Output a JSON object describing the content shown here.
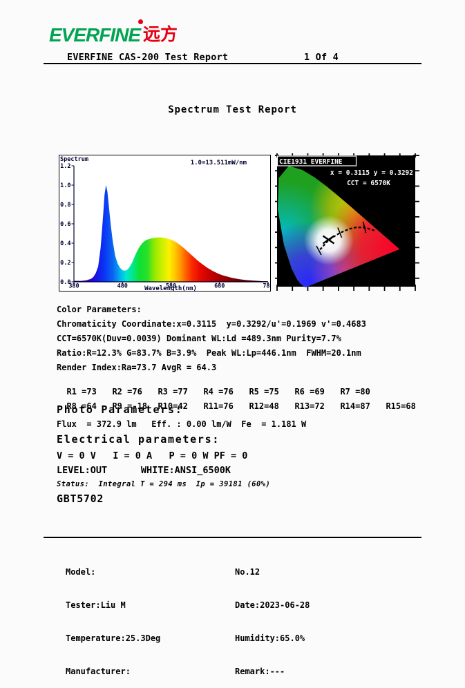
{
  "brand": {
    "name": "EVERFINE",
    "cn": "远方",
    "colors": {
      "green": "#00A451",
      "red": "#E60012"
    }
  },
  "header": {
    "title": "EVERFINE CAS-200 Test Report",
    "page": "1 Of 4"
  },
  "report_title": "Spectrum Test Report",
  "chart_data": [
    {
      "type": "area",
      "title": "Spectrum",
      "scale_note": "1.0=13.511mW/nm",
      "xlabel": "Wavelength(nm)",
      "xlim": [
        380,
        780
      ],
      "ylim": [
        0,
        1.2
      ],
      "x_ticks": [
        380,
        480,
        580,
        680,
        780
      ],
      "y_ticks": [
        "0.0",
        "0.2",
        "0.4",
        "0.6",
        "0.8",
        "1.0",
        "1.2"
      ],
      "x": [
        380,
        395,
        405,
        415,
        420,
        425,
        430,
        435,
        440,
        443,
        446,
        449,
        452,
        456,
        460,
        465,
        470,
        475,
        480,
        485,
        490,
        495,
        500,
        505,
        510,
        515,
        520,
        525,
        530,
        540,
        550,
        558,
        565,
        575,
        585,
        595,
        605,
        615,
        625,
        635,
        645,
        655,
        665,
        675,
        685,
        695,
        705,
        720,
        735,
        750,
        765,
        780
      ],
      "values": [
        0.01,
        0.01,
        0.015,
        0.03,
        0.05,
        0.09,
        0.16,
        0.35,
        0.68,
        0.9,
        1.0,
        0.93,
        0.78,
        0.58,
        0.42,
        0.27,
        0.19,
        0.145,
        0.12,
        0.115,
        0.125,
        0.155,
        0.2,
        0.26,
        0.315,
        0.36,
        0.395,
        0.42,
        0.435,
        0.45,
        0.458,
        0.46,
        0.455,
        0.445,
        0.425,
        0.395,
        0.355,
        0.31,
        0.265,
        0.22,
        0.18,
        0.145,
        0.115,
        0.09,
        0.07,
        0.055,
        0.042,
        0.028,
        0.018,
        0.012,
        0.008,
        0.005
      ],
      "peak_wavelength_nm": 446.1,
      "fwhm_nm": 20.1
    },
    {
      "type": "scatter",
      "title": "CIE1931 EVERFINE",
      "xy_label": "x = 0.3115 y = 0.3292",
      "cct_label": "CCT = 6570K",
      "point": {
        "x": 0.3115,
        "y": 0.3292
      },
      "cct_k": 6570
    }
  ],
  "color_params": {
    "heading": "Color Parameters:",
    "lines": [
      "Chromaticity Coordinate:x=0.3115  y=0.3292/u'=0.1969 v'=0.4683",
      "CCT=6570K(Duv=0.0039) Dominant WL:Ld =489.3nm Purity=7.7%",
      "Ratio:R=12.3% G=83.7% B=3.9%  Peak WL:Lp=446.1nm  FWHM=20.1nm",
      "Render Index:Ra=73.7 AvgR = 64.3"
    ],
    "cri_row1": [
      "R1 =73",
      "R2 =76",
      "R3 =77",
      "R4 =76",
      "R5 =75",
      "R6 =69",
      "R7 =80"
    ],
    "cri_row2": [
      "R8 =64",
      "R9 =-18",
      "R10=42",
      "R11=76",
      "R12=48",
      "R13=72",
      "R14=87",
      "R15=68"
    ]
  },
  "photo_params": {
    "heading": "Photo Parameters:",
    "line": "Flux  = 372.9 lm   Eff. : 0.00 lm/W  Fe  = 1.181 W"
  },
  "electrical_params": {
    "heading": "Electrical parameters:",
    "line1": "V = 0 V   I = 0 A   P = 0 W PF = 0",
    "line2": "LEVEL:OUT      WHITE:ANSI_6500K",
    "status": "Status:  Integral T = 294 ms  Ip = 39181 (60%)",
    "standard": "GBT5702"
  },
  "footer": {
    "left": [
      "Model:",
      "Tester:Liu M",
      "Temperature:25.3Deg",
      "Manufacturer:"
    ],
    "right": [
      "No.12",
      "Date:2023-06-28",
      "Humidity:65.0%",
      "Remark:---"
    ]
  }
}
